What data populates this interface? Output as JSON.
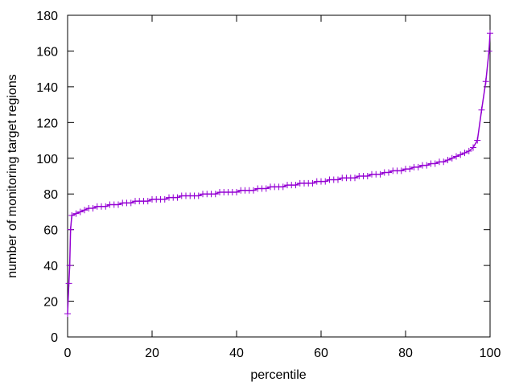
{
  "chart_data": {
    "type": "line",
    "title": "",
    "xlabel": "percentile",
    "ylabel": "number of monitoring target regions",
    "xlim": [
      0,
      100
    ],
    "ylim": [
      0,
      180
    ],
    "xticks": [
      0,
      20,
      40,
      60,
      80,
      100
    ],
    "yticks": [
      0,
      20,
      40,
      60,
      80,
      100,
      120,
      140,
      160,
      180
    ],
    "grid": false,
    "marker": "plus",
    "color": "#9400d3",
    "series": [
      {
        "x": [
          0,
          0.3,
          0.5,
          0.7,
          1,
          2,
          3,
          4,
          5,
          6,
          7,
          8,
          9,
          10,
          11,
          12,
          13,
          14,
          15,
          16,
          17,
          18,
          19,
          20,
          21,
          22,
          23,
          24,
          25,
          26,
          27,
          28,
          29,
          30,
          31,
          32,
          33,
          34,
          35,
          36,
          37,
          38,
          39,
          40,
          41,
          42,
          43,
          44,
          45,
          46,
          47,
          48,
          49,
          50,
          51,
          52,
          53,
          54,
          55,
          56,
          57,
          58,
          59,
          60,
          61,
          62,
          63,
          64,
          65,
          66,
          67,
          68,
          69,
          70,
          71,
          72,
          73,
          74,
          75,
          76,
          77,
          78,
          79,
          80,
          81,
          82,
          83,
          84,
          85,
          86,
          87,
          88,
          89,
          90,
          91,
          92,
          93,
          94,
          95,
          96,
          97,
          98,
          99,
          99.75,
          100
        ],
        "y": [
          13,
          30,
          40,
          60,
          68,
          69,
          70,
          71,
          72,
          72,
          73,
          73,
          73,
          74,
          74,
          74,
          75,
          75,
          75,
          76,
          76,
          76,
          76,
          77,
          77,
          77,
          77,
          78,
          78,
          78,
          79,
          79,
          79,
          79,
          79,
          80,
          80,
          80,
          80,
          81,
          81,
          81,
          81,
          81,
          82,
          82,
          82,
          82,
          83,
          83,
          83,
          84,
          84,
          84,
          84,
          85,
          85,
          85,
          86,
          86,
          86,
          86,
          87,
          87,
          87,
          88,
          88,
          88,
          89,
          89,
          89,
          89,
          90,
          90,
          90,
          91,
          91,
          91,
          92,
          92,
          93,
          93,
          93,
          94,
          94,
          95,
          95,
          96,
          96,
          97,
          97,
          98,
          98,
          99,
          100,
          101,
          102,
          103,
          104,
          106,
          110,
          127,
          143,
          160,
          170
        ]
      }
    ]
  }
}
